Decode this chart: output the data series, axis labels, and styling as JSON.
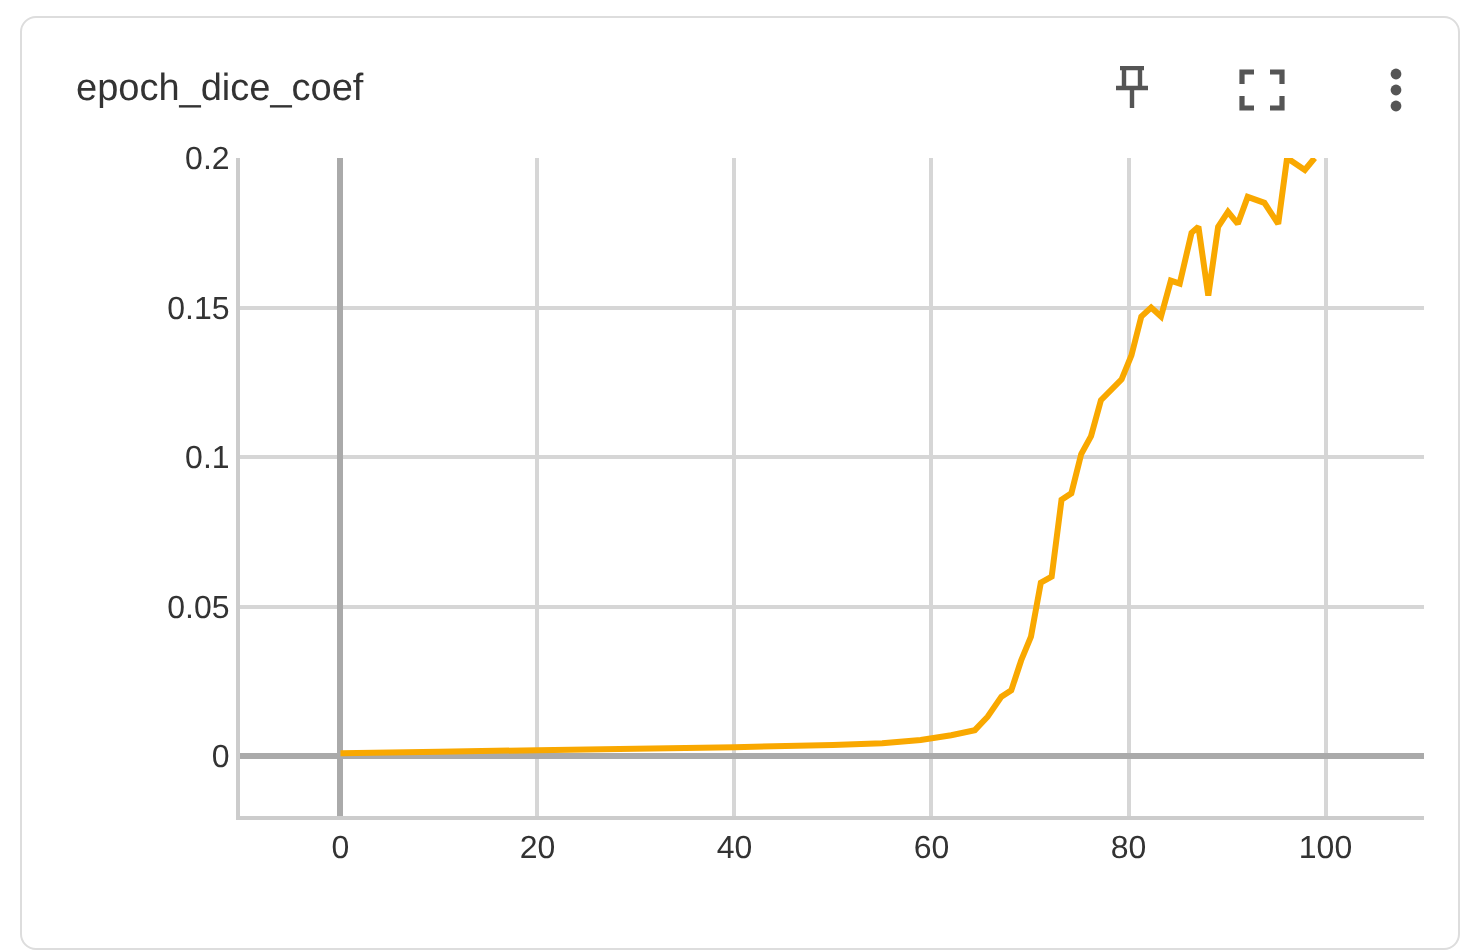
{
  "chart_data": {
    "type": "line",
    "title": "epoch_dice_coef",
    "x": [
      0,
      10,
      20,
      30,
      40,
      50,
      55,
      58.9,
      62,
      64.4,
      65.7,
      67.1,
      68.1,
      69.1,
      70.1,
      71.1,
      72.2,
      73.2,
      74.2,
      75.2,
      76.2,
      77.2,
      79.3,
      80.3,
      81.3,
      82.3,
      83.3,
      84.3,
      85.2,
      86.4,
      87.1,
      88.1,
      89.1,
      90.1,
      91.1,
      92.1,
      93.8,
      95.2,
      96.1,
      97.9,
      98.9
    ],
    "series": [
      {
        "color": "#f9a800",
        "values": [
          0.001,
          0.0015,
          0.002,
          0.0025,
          0.003,
          0.0037,
          0.0043,
          0.0054,
          0.007,
          0.0087,
          0.0132,
          0.0199,
          0.022,
          0.032,
          0.04,
          0.058,
          0.06,
          0.0857,
          0.0879,
          0.101,
          0.107,
          0.119,
          0.126,
          0.134,
          0.147,
          0.15,
          0.147,
          0.159,
          0.158,
          0.175,
          0.177,
          0.154,
          0.177,
          0.182,
          0.178,
          0.187,
          0.185,
          0.178,
          0.2,
          0.196,
          0.2
        ]
      }
    ],
    "xlim": [
      -10.2,
      110
    ],
    "xticks": [
      0,
      20,
      40,
      60,
      80,
      100
    ],
    "ylim": [
      -0.02,
      0.2
    ],
    "yticks": [
      0,
      0.05,
      0.1,
      0.15,
      0.2
    ],
    "grid": true,
    "marker": "none",
    "line_style": "solid"
  }
}
